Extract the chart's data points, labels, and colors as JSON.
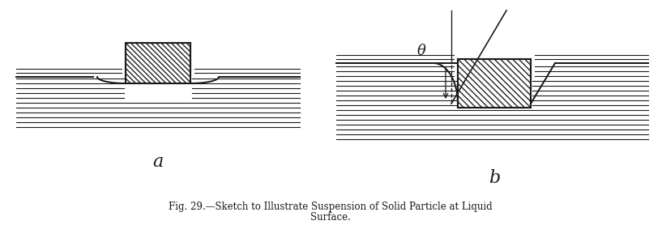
{
  "fig_width": 8.17,
  "fig_height": 2.78,
  "dpi": 100,
  "bg_color": "#ffffff",
  "line_color": "#1a1a1a",
  "caption": "Fig. 29.—Sketch to Illustrate Suspension of Solid Particle at Liquid Surface",
  "caption2": "Surface.",
  "label_a": "a",
  "label_b": "b",
  "theta_label": "θ"
}
